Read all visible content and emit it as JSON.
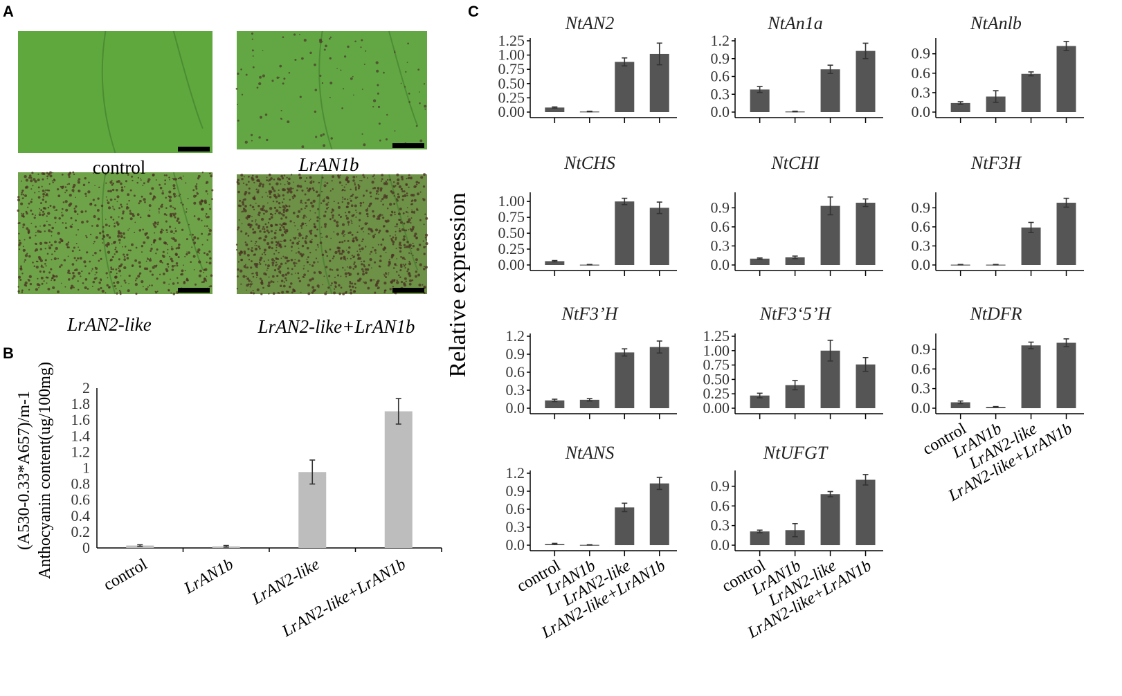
{
  "panels": {
    "a_label": "A",
    "b_label": "B",
    "c_label": "C"
  },
  "photos": [
    {
      "caption": "control",
      "italic": false,
      "colors": {
        "base": "#5fa83e",
        "spot": "#4b3a2a"
      },
      "spot_density": 0.0
    },
    {
      "caption": "LrAN1b",
      "italic": true,
      "colors": {
        "base": "#63a744",
        "spot": "#4b3a2a"
      },
      "spot_density": 0.08
    },
    {
      "caption": "LrAN2-like",
      "italic": true,
      "colors": {
        "base": "#6fa349",
        "spot": "#4a2f22"
      },
      "spot_density": 0.6
    },
    {
      "caption": "LrAN2-like+LrAN1b",
      "italic": true,
      "colors": {
        "base": "#6d9147",
        "spot": "#4a2f22"
      },
      "spot_density": 0.8
    }
  ],
  "colors": {
    "bar_dark": "#555555",
    "bar_light": "#bdbdbd",
    "scale_bar": "#000000"
  },
  "chart_data": [
    {
      "id": "B",
      "type": "bar",
      "categories": [
        "control",
        "LrAN1b",
        "LrAN2-like",
        "LrAN2-like+LrAN1b"
      ],
      "values": [
        0.03,
        0.02,
        0.95,
        1.71
      ],
      "errors": [
        0.01,
        0.01,
        0.15,
        0.16
      ],
      "ylim": [
        0,
        2
      ],
      "yticks": [
        "0",
        "0.2",
        "0.4",
        "0.6",
        "0.8",
        "1",
        "1.2",
        "1.4",
        "1.6",
        "1.8",
        "2"
      ],
      "ylabel_lines": [
        "(A530-0.33*A657)/m-1",
        "Anthocyanin content(ug/100mg)"
      ],
      "xlabel": ""
    },
    {
      "id": "C",
      "type": "bar",
      "ylabel": "Relative expression",
      "categories": [
        "control",
        "LrAN1b",
        "LrAN2-like",
        "LrAN2-like+LrAN1b"
      ],
      "subplots": [
        {
          "title": "NtAN2",
          "values": [
            0.08,
            0.01,
            0.88,
            1.02
          ],
          "errors": [
            0.01,
            0.005,
            0.07,
            0.19
          ],
          "ylim": [
            0,
            1.25
          ],
          "yticks": [
            "0.00",
            "0.25",
            "0.50",
            "0.75",
            "1.00",
            "1.25"
          ]
        },
        {
          "title": "NtAn1a",
          "values": [
            0.38,
            0.01,
            0.72,
            1.03
          ],
          "errors": [
            0.05,
            0.005,
            0.07,
            0.13
          ],
          "ylim": [
            0,
            1.2
          ],
          "yticks": [
            "0.0",
            "0.3",
            "0.6",
            "0.9",
            "1.2"
          ]
        },
        {
          "title": "NtAnlb",
          "values": [
            0.14,
            0.24,
            0.59,
            1.02
          ],
          "errors": [
            0.02,
            0.09,
            0.03,
            0.07
          ],
          "ylim": [
            0,
            1.1
          ],
          "yticks": [
            "0.0",
            "0.3",
            "0.6",
            "0.9"
          ]
        },
        {
          "title": "NtCHS",
          "values": [
            0.06,
            0.005,
            1.0,
            0.9
          ],
          "errors": [
            0.01,
            0.003,
            0.05,
            0.09
          ],
          "ylim": [
            0,
            1.1
          ],
          "yticks": [
            "0.00",
            "0.25",
            "0.50",
            "0.75",
            "1.00"
          ]
        },
        {
          "title": "NtCHI",
          "values": [
            0.1,
            0.12,
            0.93,
            0.98
          ],
          "errors": [
            0.01,
            0.02,
            0.14,
            0.06
          ],
          "ylim": [
            0,
            1.1
          ],
          "yticks": [
            "0.0",
            "0.3",
            "0.6",
            "0.9"
          ]
        },
        {
          "title": "NtF3H",
          "values": [
            0.005,
            0.005,
            0.59,
            0.98
          ],
          "errors": [
            0.003,
            0.003,
            0.08,
            0.07
          ],
          "ylim": [
            0,
            1.1
          ],
          "yticks": [
            "0.0",
            "0.3",
            "0.6",
            "0.9"
          ]
        },
        {
          "title": "NtF3’H",
          "values": [
            0.13,
            0.14,
            0.93,
            1.02
          ],
          "errors": [
            0.02,
            0.02,
            0.06,
            0.1
          ],
          "ylim": [
            0,
            1.2
          ],
          "yticks": [
            "0.0",
            "0.3",
            "0.6",
            "0.9",
            "1.2"
          ]
        },
        {
          "title": "NtF3‘5’H",
          "values": [
            0.22,
            0.4,
            1.0,
            0.76
          ],
          "errors": [
            0.04,
            0.08,
            0.18,
            0.12
          ],
          "ylim": [
            0,
            1.25
          ],
          "yticks": [
            "0.00",
            "0.25",
            "0.50",
            "0.75",
            "1.00",
            "1.25"
          ]
        },
        {
          "title": "NtDFR",
          "values": [
            0.09,
            0.02,
            0.96,
            1.0
          ],
          "errors": [
            0.02,
            0.005,
            0.05,
            0.06
          ],
          "ylim": [
            0,
            1.1
          ],
          "yticks": [
            "0.0",
            "0.3",
            "0.6",
            "0.9"
          ]
        },
        {
          "title": "NtANS",
          "values": [
            0.02,
            0.005,
            0.63,
            1.03
          ],
          "errors": [
            0.01,
            0.003,
            0.07,
            0.1
          ],
          "ylim": [
            0,
            1.2
          ],
          "yticks": [
            "0.0",
            "0.3",
            "0.6",
            "0.9",
            "1.2"
          ]
        },
        {
          "title": "NtUFGT",
          "values": [
            0.21,
            0.23,
            0.78,
            1.0
          ],
          "errors": [
            0.02,
            0.1,
            0.04,
            0.08
          ],
          "ylim": [
            0,
            1.1
          ],
          "yticks": [
            "0.0",
            "0.3",
            "0.6",
            "0.9"
          ]
        }
      ]
    }
  ]
}
